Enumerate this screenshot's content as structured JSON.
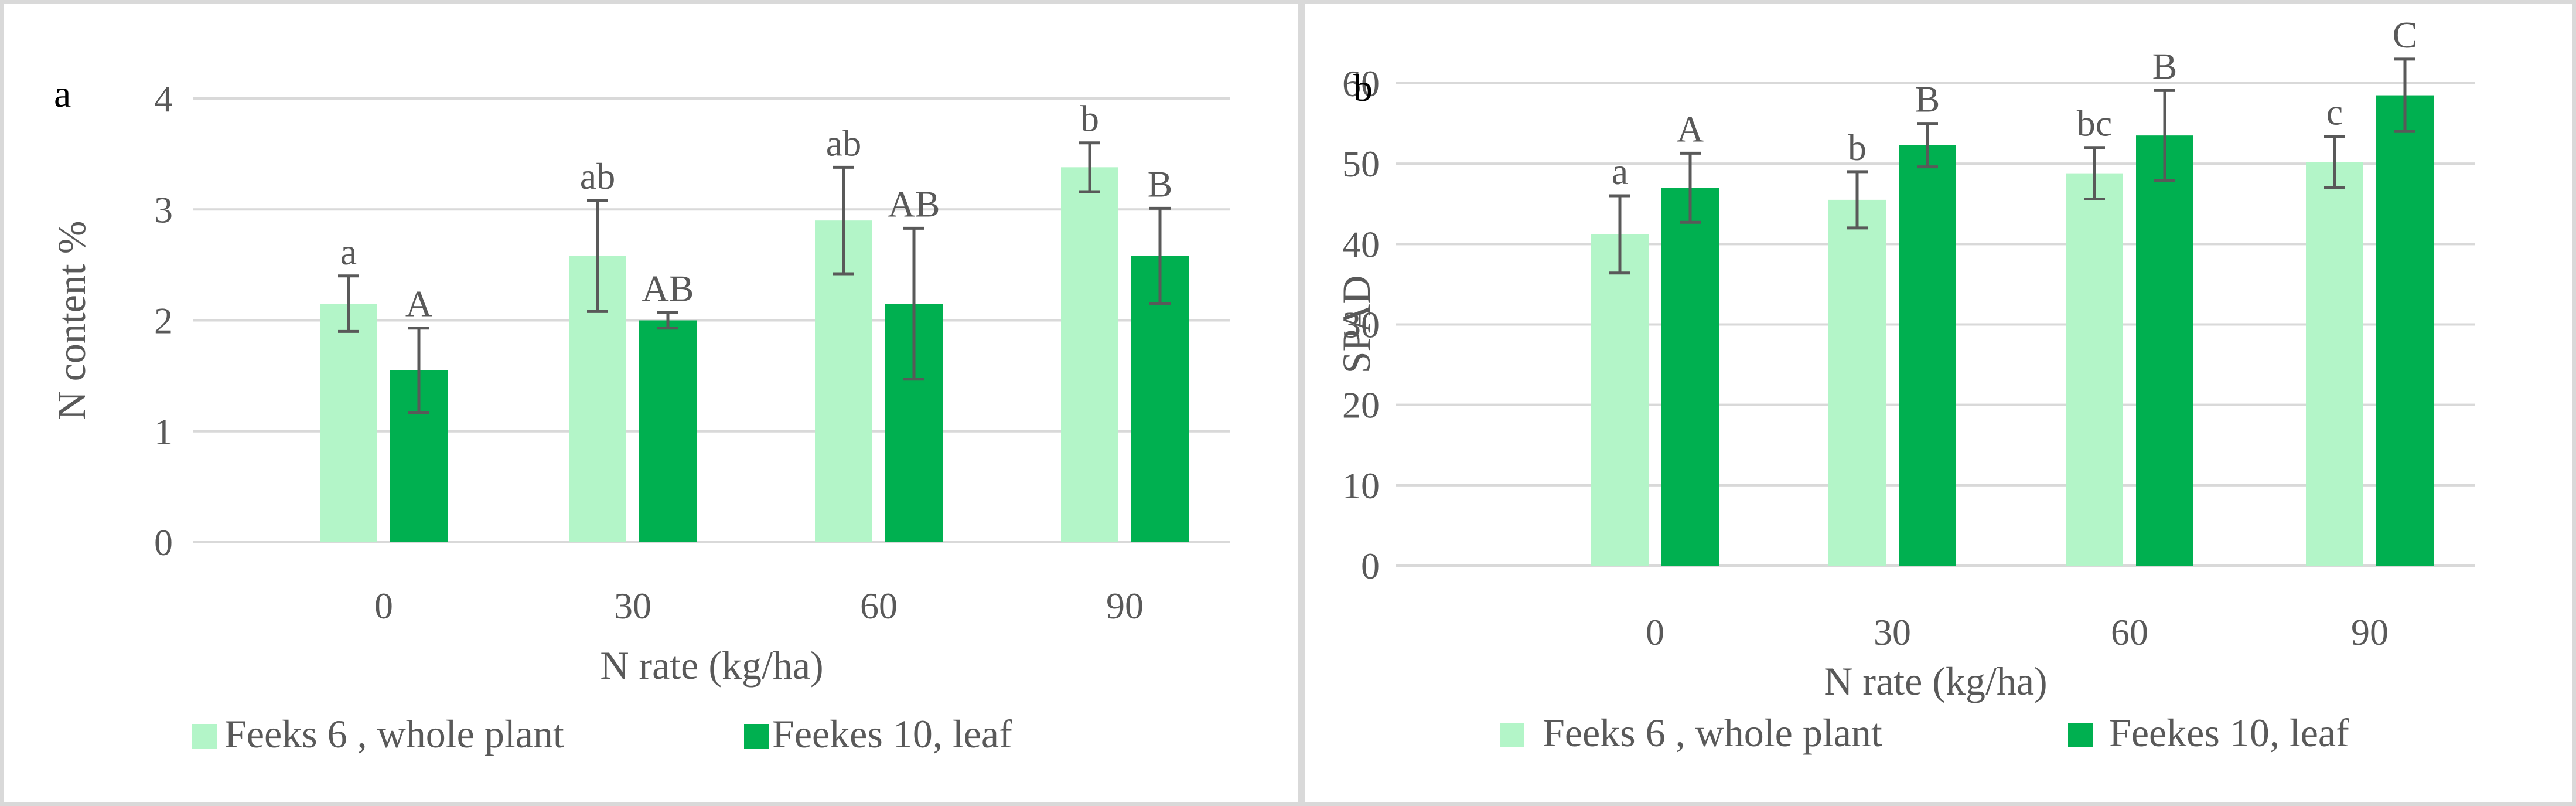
{
  "chart_data": [
    {
      "panel_label": "a",
      "type": "bar",
      "xlabel": "N rate (kg/ha)",
      "ylabel": "N content %",
      "ylim": [
        0,
        4
      ],
      "yticks": [
        "0",
        "1",
        "2",
        "3",
        "4"
      ],
      "ytick_values": [
        0,
        1,
        2,
        3,
        4
      ],
      "categories": [
        "0",
        "30",
        "60",
        "90"
      ],
      "series": [
        {
          "name": "Feeks 6 , whole plant",
          "color": "#b3f5c8",
          "values": [
            2.15,
            2.58,
            2.9,
            3.38
          ],
          "errors": [
            0.25,
            0.5,
            0.48,
            0.22
          ],
          "letters": [
            "a",
            "ab",
            "ab",
            "b"
          ]
        },
        {
          "name": "Feekes 10, leaf",
          "color": "#00b050",
          "values": [
            1.55,
            2.0,
            2.15,
            2.58
          ],
          "errors": [
            0.38,
            0.07,
            0.68,
            0.43
          ],
          "letters": [
            "A",
            "AB",
            "AB",
            "B"
          ]
        }
      ],
      "legend_position": "bottom"
    },
    {
      "panel_label": "b",
      "type": "bar",
      "xlabel": "N rate (kg/ha)",
      "ylabel": "SPAD",
      "ylim": [
        0,
        60
      ],
      "yticks": [
        "0",
        "10",
        "20",
        "30",
        "40",
        "50",
        "60"
      ],
      "ytick_values": [
        0,
        10,
        20,
        30,
        40,
        50,
        60
      ],
      "categories": [
        "0",
        "30",
        "60",
        "90"
      ],
      "series": [
        {
          "name": "Feeks 6 , whole plant",
          "color": "#b3f5c8",
          "values": [
            41.2,
            45.5,
            48.8,
            50.2
          ],
          "errors": [
            4.8,
            3.5,
            3.2,
            3.2
          ],
          "letters": [
            "a",
            "b",
            "bc",
            "c"
          ]
        },
        {
          "name": "Feekes 10,  leaf",
          "color": "#00b050",
          "values": [
            47.0,
            52.3,
            53.5,
            58.5
          ],
          "errors": [
            4.3,
            2.7,
            5.6,
            4.5
          ],
          "letters": [
            "A",
            "B",
            "B",
            "C"
          ]
        }
      ],
      "legend_position": "bottom"
    }
  ]
}
